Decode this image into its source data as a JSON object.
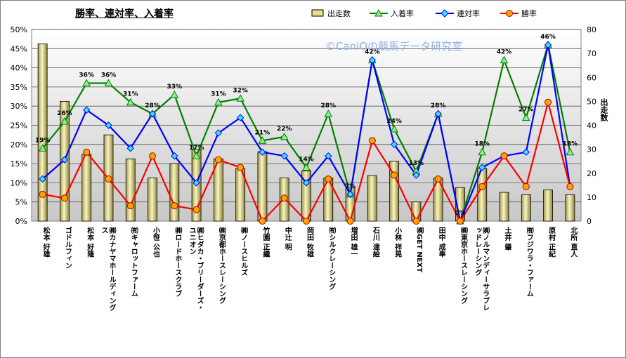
{
  "chart_data": {
    "type": "bar+line",
    "title": "勝率、連対率、入着率",
    "watermark": "©CaniOの競馬データ研究室",
    "y_left": {
      "ticks": [
        "0%",
        "5%",
        "10%",
        "15%",
        "20%",
        "25%",
        "30%",
        "35%",
        "40%",
        "45%",
        "50%"
      ],
      "min": 0,
      "max": 50
    },
    "y_right": {
      "label": "出走数",
      "ticks": [
        "0",
        "10",
        "20",
        "30",
        "40",
        "50",
        "60",
        "70",
        "80"
      ],
      "min": 0,
      "max": 80
    },
    "legend": [
      "出走数",
      "入着率",
      "連対率",
      "勝率"
    ],
    "colors": {
      "bar": "#e8e090",
      "place": "#008000",
      "quinella": "#0000ff",
      "win": "#ff0000",
      "place_marker": "#90ee90",
      "quinella_marker": "#40e0ff",
      "win_marker": "#ffa500"
    },
    "categories": [
      "松本 好雄",
      "ゴドルフィン",
      "松本 好隆",
      "㈱カナヤマホールディングス",
      "㈲キャロットファーム",
      "小笹 公也",
      "㈱ロードホースクラブ",
      "㈱ヒダカ・ブリーダーズ・ユニオン",
      "㈱京都ホースレーシング",
      "㈱ノースヒルズ",
      "竹園 正繼",
      "中辻 明",
      "岡田 牧雄",
      "㈲シルクレーシング",
      "増田 雄一",
      "石川 達絵",
      "小林 祥晃",
      "㈱GET NEXT",
      "田中 成奉",
      "㈱東京ホースレーシング",
      "㈱ノルマンディーサラブレッドレーシング",
      "土井 肇",
      "㈲フジワラ・ファーム",
      "原村 正紀",
      "北所 直人"
    ],
    "series": [
      {
        "name": "出走数",
        "axis": "right",
        "values": [
          74,
          50,
          28,
          36,
          26,
          18,
          24,
          30,
          26,
          22,
          29,
          18,
          21,
          18,
          14,
          19,
          25,
          8,
          18,
          14,
          22,
          12,
          11,
          13,
          11
        ]
      },
      {
        "name": "入着率",
        "axis": "left",
        "values": [
          19,
          26,
          36,
          36,
          31,
          28,
          33,
          17,
          31,
          32,
          21,
          22,
          14,
          28,
          7,
          42,
          24,
          13,
          28,
          0,
          18,
          42,
          27,
          46,
          18
        ]
      },
      {
        "name": "連対率",
        "axis": "left",
        "values": [
          11,
          16,
          29,
          25,
          19,
          28,
          17,
          10,
          23,
          27,
          18,
          17,
          10,
          17,
          7,
          42,
          20,
          12,
          28,
          0,
          14,
          17,
          18,
          46,
          9
        ]
      },
      {
        "name": "勝率",
        "axis": "left",
        "values": [
          7,
          6,
          18,
          11,
          4,
          17,
          4,
          3,
          16,
          14,
          0,
          6,
          0,
          11,
          0,
          21,
          12,
          0,
          11,
          0,
          9,
          17,
          9,
          31,
          9
        ]
      }
    ],
    "data_labels": [
      "19%",
      "26%",
      "36%",
      "36%",
      "31%",
      "28%",
      "33%",
      "17%",
      "31%",
      "32%",
      "21%",
      "22%",
      "14%",
      "28%",
      "7%",
      "42%",
      "24%",
      "13%",
      "28%",
      "0%",
      "18%",
      "42%",
      "27%",
      "46%",
      "18%"
    ]
  }
}
